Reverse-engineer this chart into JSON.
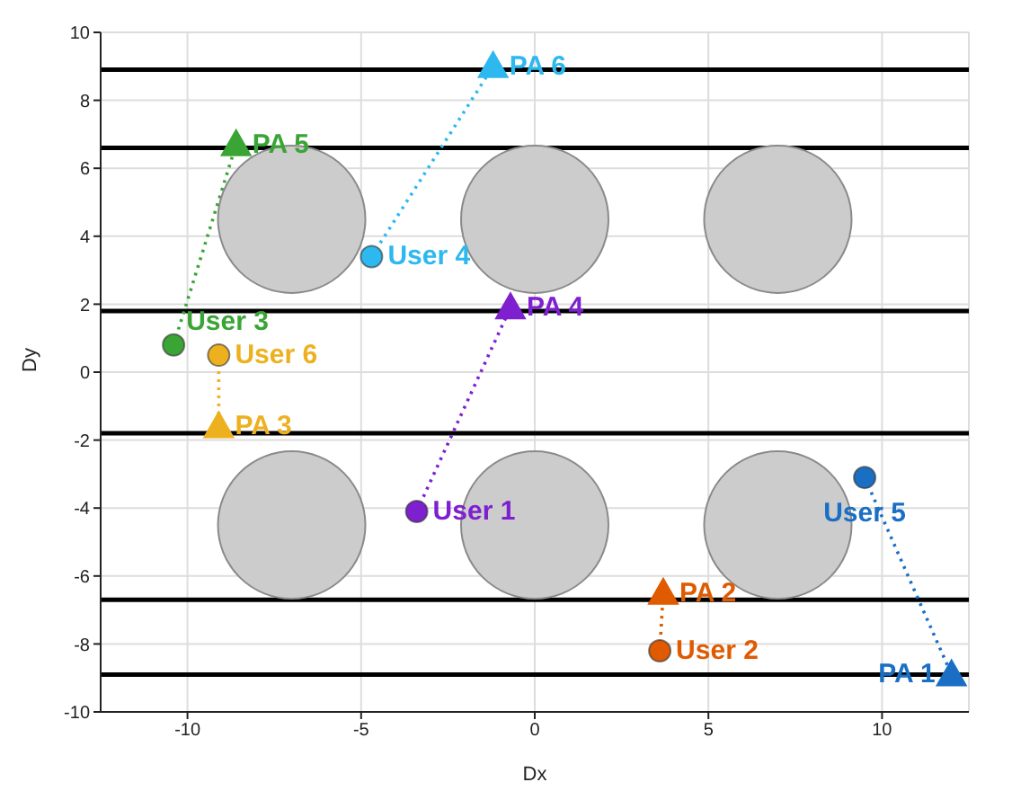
{
  "chart_data": {
    "type": "scatter",
    "xlabel": "Dx",
    "ylabel": "Dy",
    "xlim": [
      -12.5,
      12.5
    ],
    "ylim": [
      -10,
      10
    ],
    "xticks": [
      -10,
      -5,
      0,
      5,
      10
    ],
    "yticks": [
      -10,
      -8,
      -6,
      -4,
      -2,
      0,
      2,
      4,
      6,
      8,
      10
    ],
    "grid": true,
    "ref_lines": [
      {
        "axis": "y",
        "value": 8.9,
        "color": "#000000"
      },
      {
        "axis": "y",
        "value": 6.6,
        "color": "#000000"
      },
      {
        "axis": "y",
        "value": 1.8,
        "color": "#000000"
      },
      {
        "axis": "y",
        "value": -1.8,
        "color": "#000000"
      },
      {
        "axis": "y",
        "value": -6.7,
        "color": "#000000"
      },
      {
        "axis": "y",
        "value": -8.9,
        "color": "#000000"
      }
    ],
    "series": [
      {
        "type": "bubble",
        "color": "#cccccc",
        "x": [
          -7,
          0,
          7,
          -7,
          0,
          7
        ],
        "values": [
          4.5,
          4.5,
          4.5,
          -4.5,
          -4.5,
          -4.5
        ],
        "sizes": [
          1,
          1,
          1,
          1,
          1,
          1
        ]
      },
      {
        "type": "line",
        "line_style": "dotted",
        "marker": "none",
        "color": "#7e1fd0",
        "x": [
          -3.4,
          -0.7
        ],
        "values": [
          -4.1,
          1.9
        ]
      },
      {
        "type": "line",
        "line_style": "dotted",
        "marker": "none",
        "color": "#e05a00",
        "x": [
          3.6,
          3.7
        ],
        "values": [
          -8.2,
          -6.5
        ]
      },
      {
        "type": "line",
        "line_style": "dotted",
        "marker": "none",
        "color": "#3aa535",
        "x": [
          -10.4,
          -8.6
        ],
        "values": [
          0.8,
          6.7
        ]
      },
      {
        "type": "line",
        "line_style": "dotted",
        "marker": "none",
        "color": "#2db8ef",
        "x": [
          -4.7,
          -1.2
        ],
        "values": [
          3.4,
          9.0
        ]
      },
      {
        "type": "line",
        "line_style": "dotted",
        "marker": "none",
        "color": "#1a6fc4",
        "x": [
          9.5,
          12.0
        ],
        "values": [
          -3.1,
          -8.9
        ]
      },
      {
        "type": "line",
        "line_style": "dotted",
        "marker": "none",
        "color": "#edb120",
        "x": [
          -9.1,
          -9.1
        ],
        "values": [
          0.5,
          -1.6
        ]
      },
      {
        "name": "User 1",
        "marker": "circle",
        "color": "#7e1fd0",
        "x": [
          -3.4
        ],
        "values": [
          -4.1
        ]
      },
      {
        "name": "User 2",
        "marker": "circle",
        "color": "#e05a00",
        "x": [
          3.6
        ],
        "values": [
          -8.2
        ]
      },
      {
        "name": "User 3",
        "marker": "circle",
        "color": "#3aa535",
        "x": [
          -10.4
        ],
        "values": [
          0.8
        ]
      },
      {
        "name": "User 4",
        "marker": "circle",
        "color": "#2db8ef",
        "x": [
          -4.7
        ],
        "values": [
          3.4
        ]
      },
      {
        "name": "User 5",
        "marker": "circle",
        "color": "#1a6fc4",
        "x": [
          9.5
        ],
        "values": [
          -3.1
        ]
      },
      {
        "name": "User 6",
        "marker": "circle",
        "color": "#edb120",
        "x": [
          -9.1
        ],
        "values": [
          0.5
        ]
      },
      {
        "name": "PA 1",
        "marker": "triangle",
        "color": "#1a6fc4",
        "x": [
          12.0
        ],
        "values": [
          -8.9
        ]
      },
      {
        "name": "PA 2",
        "marker": "triangle",
        "color": "#e05a00",
        "x": [
          3.7
        ],
        "values": [
          -6.5
        ]
      },
      {
        "name": "PA 3",
        "marker": "triangle",
        "color": "#edb120",
        "x": [
          -9.1
        ],
        "values": [
          -1.6
        ]
      },
      {
        "name": "PA 4",
        "marker": "triangle",
        "color": "#7e1fd0",
        "x": [
          -0.7
        ],
        "values": [
          1.9
        ]
      },
      {
        "name": "PA 5",
        "marker": "triangle",
        "color": "#3aa535",
        "x": [
          -8.6
        ],
        "values": [
          6.7
        ]
      },
      {
        "name": "PA 6",
        "marker": "triangle",
        "color": "#2db8ef",
        "x": [
          -1.2
        ],
        "values": [
          9.0
        ]
      }
    ]
  }
}
